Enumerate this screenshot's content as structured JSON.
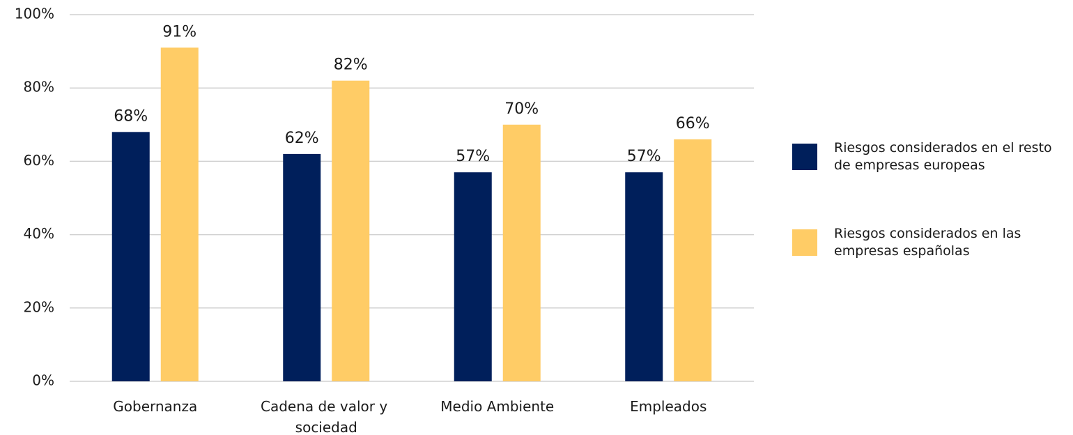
{
  "chart_data": {
    "type": "bar",
    "categories": [
      "Gobernanza",
      "Cadena de valor y sociedad",
      "Medio Ambiente",
      "Empleados"
    ],
    "series": [
      {
        "name": "Riesgos considerados en el resto de empresas europeas",
        "color": "#001f5b",
        "values": [
          68,
          62,
          57,
          57
        ],
        "value_labels": [
          "68%",
          "62%",
          "57%",
          "57%"
        ]
      },
      {
        "name": "Riesgos considerados en las empresas españolas",
        "color": "#ffcc66",
        "values": [
          91,
          82,
          70,
          66
        ],
        "value_labels": [
          "91%",
          "82%",
          "70%",
          "66%"
        ]
      }
    ],
    "ylim": [
      0,
      100
    ],
    "yticks": [
      {
        "value": 0,
        "label": "0%"
      },
      {
        "value": 20,
        "label": "20%"
      },
      {
        "value": 40,
        "label": "40%"
      },
      {
        "value": 60,
        "label": "60%"
      },
      {
        "value": 80,
        "label": "80%"
      },
      {
        "value": 100,
        "label": "100%"
      }
    ],
    "grid": true,
    "legend": "right"
  }
}
